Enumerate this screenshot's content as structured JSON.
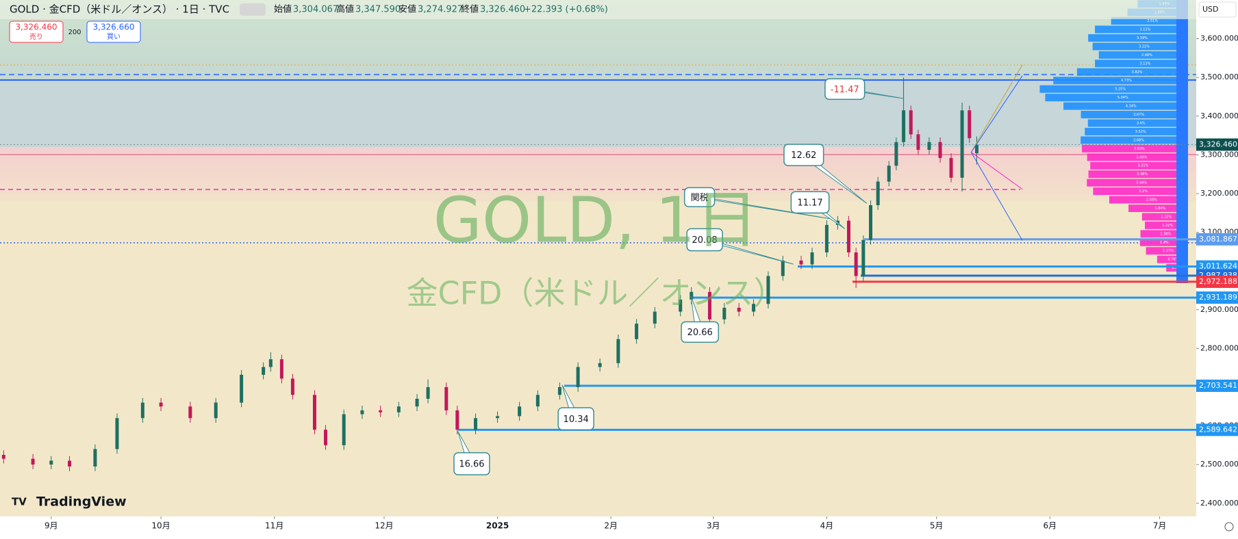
{
  "header": {
    "symbol": "GOLD · 金CFD（米ドル／オンス） · 1日 · TVC",
    "open_label": "始値",
    "open": "3,304.067",
    "high_label": "高値",
    "high": "3,347.590",
    "low_label": "安値",
    "low": "3,274.927",
    "close_label": "終値",
    "close": "3,326.460",
    "change": "+22.393 (+0.68%)",
    "sell_price": "3,326.460",
    "sell_label": "売り",
    "spread": 200,
    "buy_price": "3,326.660",
    "buy_label": "買い",
    "currency": "USD",
    "brand": "TradingView"
  },
  "chart_data": {
    "type": "candlestick",
    "title": "GOLD, 1日",
    "subtitle": "金CFD（米ドル／オンス）",
    "up_color": "#1f6f63",
    "down_color": "#c2185b",
    "x": [
      -13,
      -5,
      0,
      5,
      12,
      18,
      25,
      30,
      38,
      45,
      52,
      58,
      60,
      63,
      66,
      72,
      75,
      80,
      85,
      90,
      95,
      100,
      103,
      108,
      111,
      116,
      122,
      128,
      133,
      139,
      144,
      150,
      155,
      160,
      165,
      172,
      175,
      180,
      184,
      188,
      192,
      196,
      200,
      205,
      208,
      212,
      215,
      218,
      220,
      222,
      224,
      226,
      229,
      231,
      233,
      235,
      237,
      240,
      243,
      246,
      249,
      251,
      253
    ],
    "open": [
      2525,
      2515,
      2500,
      2510,
      2495,
      2540,
      2620,
      2660,
      2650,
      2620,
      2660,
      2732,
      2752,
      2772,
      2722,
      2680,
      2590,
      2550,
      2630,
      2640,
      2635,
      2650,
      2670,
      2700,
      2640,
      2590,
      2620,
      2625,
      2650,
      2680,
      2700,
      2752,
      2762,
      2824,
      2864,
      2895,
      2926,
      2946,
      2875,
      2905,
      2895,
      2915,
      2987,
      3027,
      3017,
      3048,
      3119,
      3130,
      3048,
      2987,
      3080,
      3170,
      3231,
      3272,
      3333,
      3415,
      3353,
      3313,
      3333,
      3292,
      3241,
      3415,
      3304.067
    ],
    "high": [
      2537,
      2527,
      2522,
      2522,
      2552,
      2632,
      2672,
      2672,
      2662,
      2672,
      2744,
      2764,
      2790,
      2784,
      2734,
      2692,
      2602,
      2642,
      2652,
      2652,
      2662,
      2682,
      2720,
      2712,
      2652,
      2632,
      2637,
      2662,
      2692,
      2712,
      2764,
      2774,
      2836,
      2876,
      2907,
      2938,
      2958,
      2958,
      2917,
      2917,
      2927,
      2999,
      3039,
      3039,
      3060,
      3131,
      3142,
      3142,
      3060,
      3092,
      3182,
      3243,
      3284,
      3345,
      3500,
      3427,
      3365,
      3345,
      3345,
      3304,
      3435,
      3427,
      3347.59
    ],
    "low": [
      2503,
      2488,
      2488,
      2483,
      2483,
      2528,
      2608,
      2638,
      2608,
      2608,
      2648,
      2720,
      2740,
      2710,
      2668,
      2578,
      2538,
      2538,
      2618,
      2623,
      2623,
      2638,
      2658,
      2628,
      2578,
      2578,
      2608,
      2613,
      2638,
      2668,
      2688,
      2740,
      2750,
      2812,
      2852,
      2883,
      2914,
      2863,
      2863,
      2883,
      2883,
      2903,
      2975,
      3005,
      3005,
      3036,
      3107,
      3036,
      2956,
      2975,
      3068,
      3158,
      3219,
      3260,
      3321,
      3341,
      3301,
      3301,
      3280,
      3229,
      3205,
      3331,
      3274.927
    ],
    "close": [
      2515,
      2500,
      2510,
      2495,
      2540,
      2620,
      2660,
      2650,
      2620,
      2660,
      2732,
      2752,
      2772,
      2722,
      2680,
      2590,
      2550,
      2630,
      2640,
      2635,
      2650,
      2670,
      2700,
      2640,
      2590,
      2620,
      2625,
      2650,
      2680,
      2700,
      2752,
      2762,
      2824,
      2864,
      2895,
      2926,
      2946,
      2875,
      2905,
      2895,
      2915,
      2987,
      3027,
      3017,
      3048,
      3119,
      3130,
      3048,
      2987,
      3080,
      3170,
      3231,
      3272,
      3333,
      3415,
      3353,
      3313,
      3333,
      3292,
      3241,
      3415,
      3343,
      3326.46
    ],
    "xlim": [
      -14,
      313
    ],
    "xticks": [
      {
        "value": 0,
        "label": "9月"
      },
      {
        "value": 30,
        "label": "10月"
      },
      {
        "value": 61,
        "label": "11月"
      },
      {
        "value": 91,
        "label": "12月"
      },
      {
        "value": 122,
        "label": "2025"
      },
      {
        "value": 153,
        "label": "2月"
      },
      {
        "value": 181,
        "label": "3月"
      },
      {
        "value": 212,
        "label": "4月"
      },
      {
        "value": 242,
        "label": "5月"
      },
      {
        "value": 273,
        "label": "6月"
      },
      {
        "value": 303,
        "label": "7月"
      }
    ],
    "ylim": [
      2366,
      3700
    ],
    "yticks": [
      {
        "value": 2400,
        "label": "2,400.000"
      },
      {
        "value": 2500,
        "label": "2,500.000"
      },
      {
        "value": 2600,
        "label": "2,600.000"
      },
      {
        "value": 2700,
        "label": "2,700.000"
      },
      {
        "value": 2800,
        "label": "2,800.000"
      },
      {
        "value": 2900,
        "label": "2,900.000"
      },
      {
        "value": 3100,
        "label": "3,100.000"
      },
      {
        "value": 3200,
        "label": "3,200.000"
      },
      {
        "value": 3300,
        "label": "3,300.000"
      },
      {
        "value": 3400,
        "label": "3,400.000"
      },
      {
        "value": 3500,
        "label": "3,500.000"
      },
      {
        "value": 3600,
        "label": "3,600.000"
      }
    ],
    "levels": [
      {
        "value": 3326.46,
        "label": "3,326.460",
        "color": "#0d4f4f"
      },
      {
        "value": 3081.867,
        "label": "3,081.867",
        "color": "#5b9cf0"
      },
      {
        "value": 3011.624,
        "label": "3,011.624",
        "color": "#2196f3"
      },
      {
        "value": 2987.938,
        "label": "2,987.938",
        "color": "#1e6fd9"
      },
      {
        "value": 2972.188,
        "label": "2,972.188",
        "color": "#f23645"
      },
      {
        "value": 2931.189,
        "label": "2,931.189",
        "color": "#2196f3"
      },
      {
        "value": 2703.541,
        "label": "2,703.541",
        "color": "#2196f3"
      },
      {
        "value": 2589.642,
        "label": "2,589.642",
        "color": "#2196f3"
      }
    ],
    "annotations": [
      {
        "text": -11.47
      },
      {
        "text": 12.62
      },
      {
        "text": "関税"
      },
      {
        "text": 11.17
      },
      {
        "text": 20.08
      },
      {
        "text": 20.66
      },
      {
        "text": 10.34
      },
      {
        "text": 16.66
      }
    ],
    "volume_profile": {
      "up_color": "#1e90ff",
      "down_color": "#ff2bc8",
      "prices": [
        3690,
        3668,
        3646,
        3624,
        3602,
        3580,
        3558,
        3536,
        3514,
        3492,
        3470,
        3448,
        3426,
        3404,
        3382,
        3360,
        3338,
        3316,
        3294,
        3272,
        3250,
        3228,
        3206,
        3184,
        3162,
        3140,
        3118,
        3096,
        3074,
        3052,
        3030,
        3008
      ],
      "values": [
        1.49,
        1.88,
        2.51,
        3.13,
        3.39,
        3.22,
        2.98,
        3.13,
        3.82,
        4.73,
        5.25,
        5.04,
        4.34,
        3.67,
        3.4,
        3.52,
        3.68,
        3.63,
        3.43,
        3.31,
        3.38,
        3.44,
        3.2,
        2.58,
        1.84,
        1.32,
        1.21,
        1.38,
        1.4,
        1.17,
        0.74,
        0.39
      ],
      "value_labels": [
        "1.49%",
        "1.88%",
        "2.51%",
        "3.13%",
        "3.39%",
        "3.22%",
        "2.98%",
        "3.13%",
        "3.82%",
        "4.73%",
        "5.25%",
        "5.04%",
        "4.34%",
        "3.67%",
        "3.4%",
        "3.52%",
        "3.68%",
        "3.63%",
        "3.43%",
        "3.31%",
        "3.38%",
        "3.44%",
        "3.2%",
        "2.58%",
        "1.84%",
        "1.32%",
        "1.21%",
        "1.38%",
        "1.4%",
        "1.17%",
        "0.74%",
        "0.39%"
      ]
    }
  }
}
